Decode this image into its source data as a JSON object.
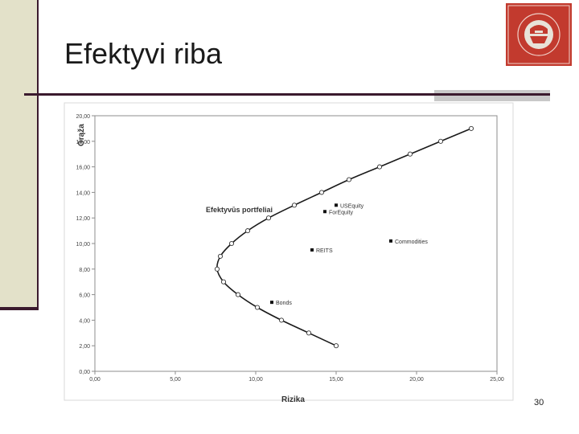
{
  "slide": {
    "title": "Efektyvi riba",
    "page_number": "30"
  },
  "colors": {
    "left_bar": "#e3e1c9",
    "accent_dark": "#3b1a2e",
    "logo_red": "#c23a2e"
  },
  "chart_data": {
    "type": "scatter",
    "xlabel": "Rizika",
    "ylabel": "Grąža",
    "xlim": [
      0,
      25
    ],
    "ylim": [
      0,
      20
    ],
    "x_ticks": [
      "0,00",
      "5,00",
      "10,00",
      "15,00",
      "20,00",
      "25,00"
    ],
    "y_ticks": [
      "0,00",
      "2,00",
      "4,00",
      "6,00",
      "8,00",
      "10,00",
      "12,00",
      "14,00",
      "16,00",
      "18,00",
      "20,00"
    ],
    "grid": false,
    "frontier_label": "Efektyvūs portfeliai",
    "frontier": [
      {
        "x": 15.0,
        "y": 2.0
      },
      {
        "x": 13.3,
        "y": 3.0
      },
      {
        "x": 11.6,
        "y": 4.0
      },
      {
        "x": 10.1,
        "y": 5.0
      },
      {
        "x": 8.9,
        "y": 6.0
      },
      {
        "x": 8.0,
        "y": 7.0
      },
      {
        "x": 7.6,
        "y": 8.0
      },
      {
        "x": 7.8,
        "y": 9.0
      },
      {
        "x": 8.5,
        "y": 10.0
      },
      {
        "x": 9.5,
        "y": 11.0
      },
      {
        "x": 10.8,
        "y": 12.0
      },
      {
        "x": 12.4,
        "y": 13.0
      },
      {
        "x": 14.1,
        "y": 14.0
      },
      {
        "x": 15.8,
        "y": 15.0
      },
      {
        "x": 17.7,
        "y": 16.0
      },
      {
        "x": 19.6,
        "y": 17.0
      },
      {
        "x": 21.5,
        "y": 18.0
      },
      {
        "x": 23.4,
        "y": 19.0
      }
    ],
    "assets": [
      {
        "name": "USEquity",
        "x": 15.0,
        "y": 13.0
      },
      {
        "name": "ForEquity",
        "x": 14.3,
        "y": 12.5
      },
      {
        "name": "Commodities",
        "x": 18.4,
        "y": 10.2
      },
      {
        "name": "REITS",
        "x": 13.5,
        "y": 9.5
      },
      {
        "name": "Bonds",
        "x": 11.0,
        "y": 5.4
      }
    ]
  }
}
